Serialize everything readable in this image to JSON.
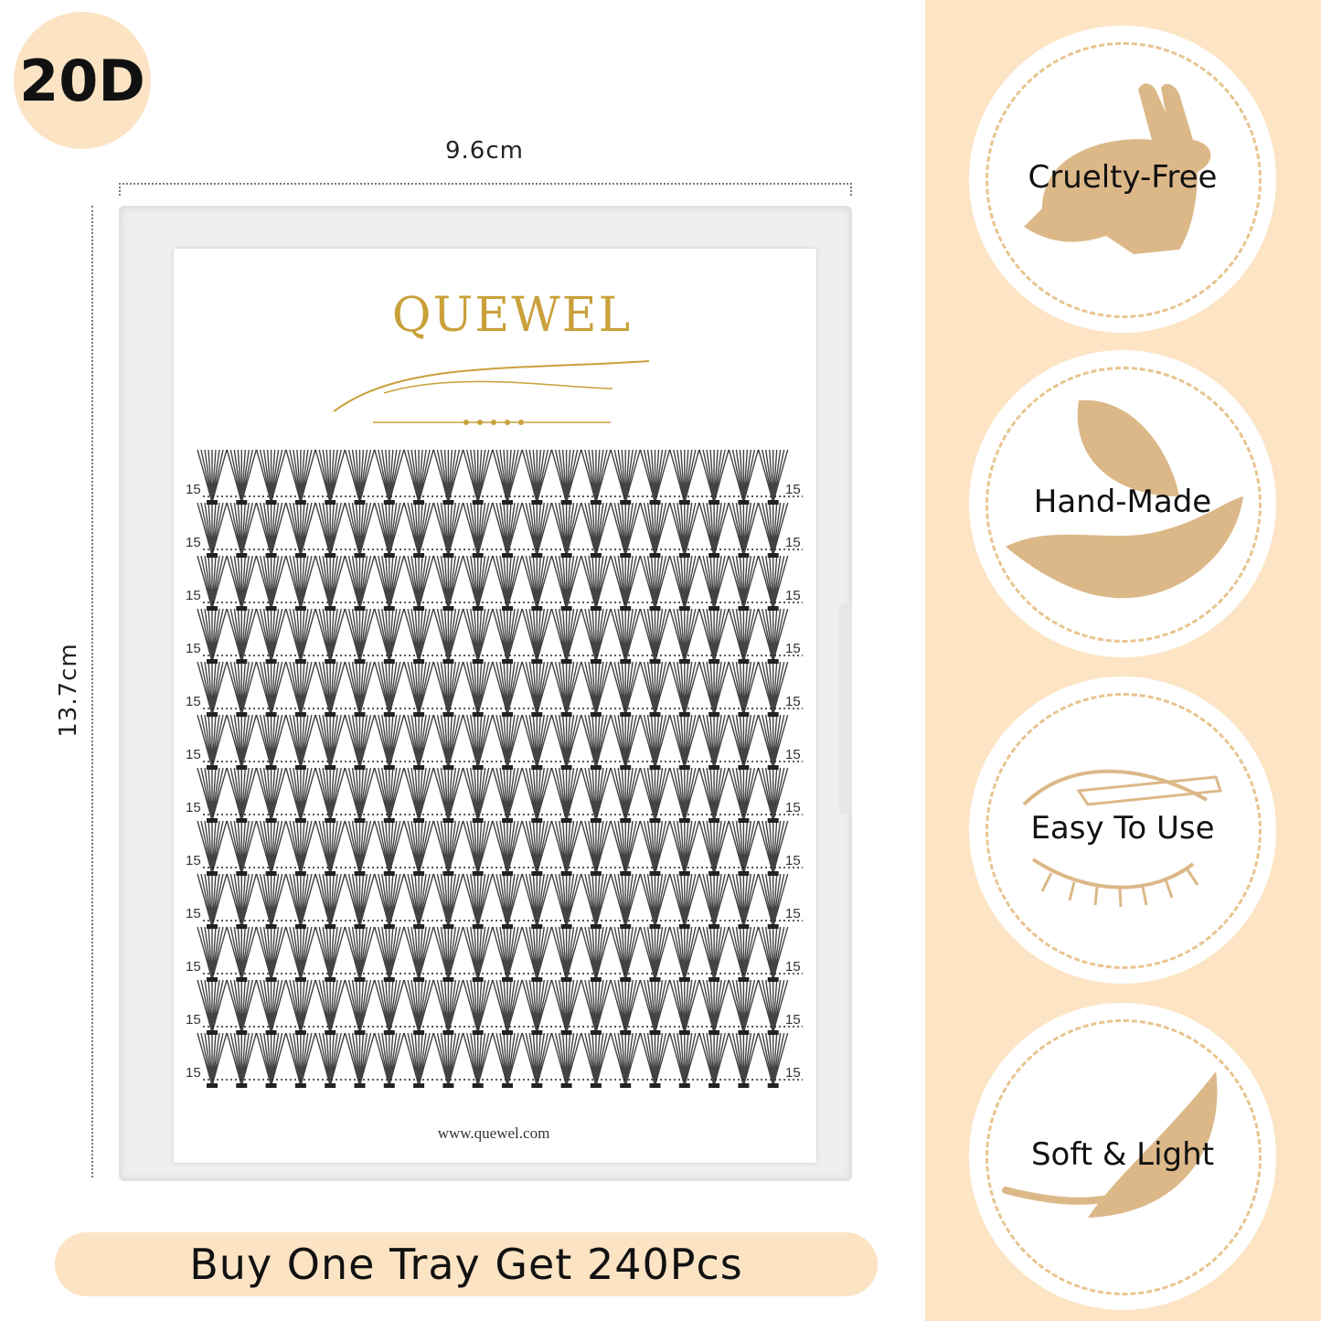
{
  "badge": {
    "label": "20D"
  },
  "dimensions": {
    "width": "9.6cm",
    "height": "13.7cm"
  },
  "tray": {
    "brand": "QUEWEL",
    "website": "www.quewel.com",
    "rows": 12,
    "clusters_per_row": 20,
    "row_length_label": "15"
  },
  "promo": {
    "text": "Buy One Tray Get 240Pcs"
  },
  "features": [
    {
      "label": "Cruelty-Free",
      "icon": "rabbit-icon"
    },
    {
      "label": "Hand-Made",
      "icon": "hand-leaf-icon"
    },
    {
      "label": "Easy To Use",
      "icon": "eye-applicator-icon"
    },
    {
      "label": "Soft & Light",
      "icon": "feather-icon"
    }
  ],
  "colors": {
    "accent": "#fbe3c3",
    "icon": "#dcb888",
    "gold": "#c9a03a"
  }
}
